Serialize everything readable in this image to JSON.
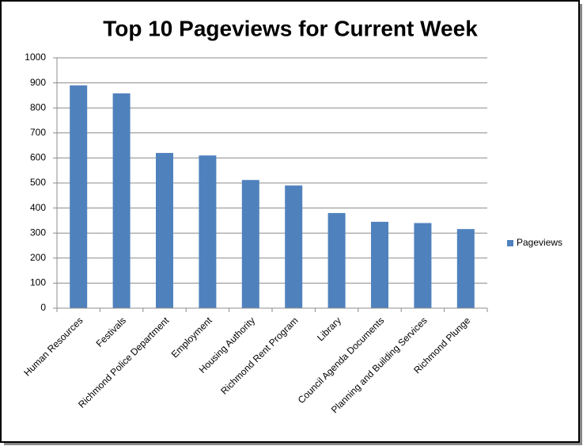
{
  "chart_data": {
    "type": "bar",
    "title": "Top 10 Pageviews for Current Week",
    "categories": [
      "Human Resources",
      "Festivals",
      "Richmond Police Department",
      "Employment",
      "Housing Authority",
      "Richmond Rent Program",
      "Library",
      "Council Agenda Documents",
      "Planning and Building Services",
      "Richmond Plunge"
    ],
    "series": [
      {
        "name": "Pageviews",
        "color": "#4f81bd",
        "values": [
          890,
          858,
          620,
          610,
          512,
          490,
          380,
          345,
          340,
          316
        ]
      }
    ],
    "ylim": [
      0,
      1000
    ],
    "yticks": [
      0,
      100,
      200,
      300,
      400,
      500,
      600,
      700,
      800,
      900,
      1000
    ],
    "grid": true,
    "legend": "right"
  }
}
